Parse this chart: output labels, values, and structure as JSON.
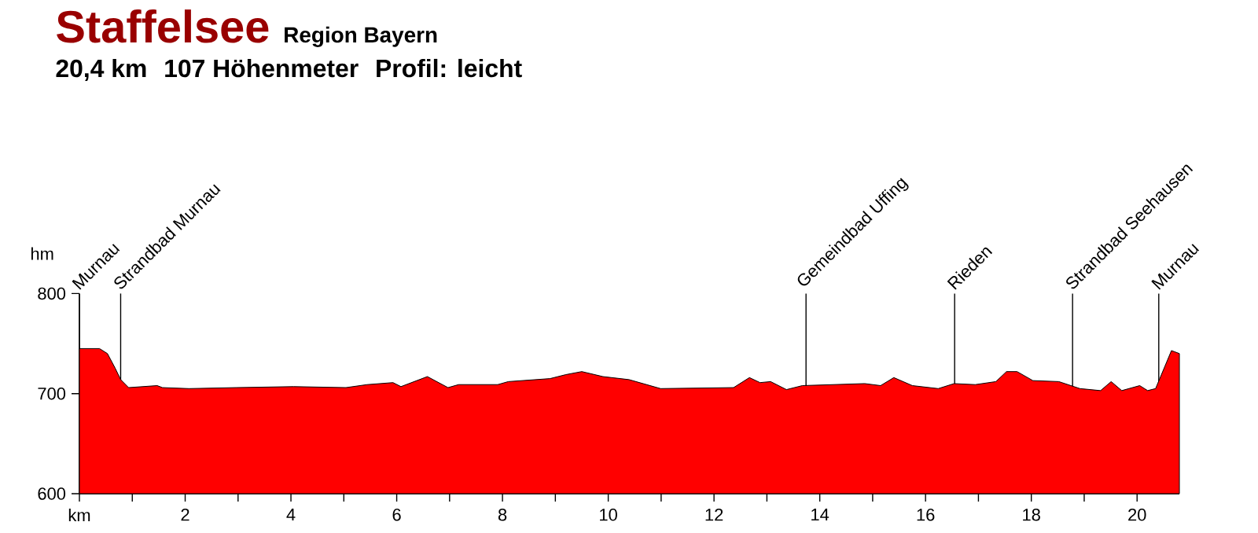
{
  "chart_data": {
    "type": "area",
    "title": "Staffelsee",
    "subtitle": "Region Bayern",
    "ylabel": "hm",
    "annotations": [
      "20,4 km",
      "107 Höhenmeter",
      "Profil: leicht"
    ],
    "x": [
      0,
      0.38,
      0.53,
      0.68,
      0.78,
      0.93,
      1.47,
      1.57,
      2.07,
      2.96,
      4.05,
      5.04,
      5.44,
      5.93,
      6.08,
      6.58,
      6.97,
      7.17,
      7.91,
      8.11,
      8.9,
      9.2,
      9.5,
      9.9,
      10.39,
      10.99,
      12.37,
      12.67,
      12.87,
      13.07,
      13.37,
      13.67,
      14.85,
      15.15,
      15.4,
      15.75,
      16.24,
      16.54,
      16.94,
      17.33,
      17.53,
      17.73,
      18.03,
      18.52,
      18.92,
      19.31,
      19.51,
      19.71,
      20.05,
      20.2,
      20.35,
      20.65,
      20.8
    ],
    "series": [
      {
        "color": "#ff0000",
        "values": [
          745,
          745,
          740,
          725,
          714,
          706,
          708,
          706,
          705,
          706,
          707,
          706,
          709,
          711,
          707,
          717,
          706,
          709,
          709,
          712,
          715,
          719,
          722,
          717,
          714,
          705,
          706,
          716,
          711,
          712,
          704,
          708,
          710,
          708,
          716,
          708,
          705,
          710,
          709,
          712,
          722,
          722,
          713,
          712,
          705,
          703,
          712,
          703,
          708,
          703,
          705,
          743,
          740
        ]
      }
    ],
    "xlim": [
      0,
      20.8
    ],
    "ylim": [
      600,
      800
    ],
    "xticks": [
      {
        "value": 0,
        "label": "km"
      },
      {
        "value": 1,
        "label": null
      },
      2,
      {
        "value": 3,
        "label": null
      },
      4,
      {
        "value": 5,
        "label": null
      },
      6,
      {
        "value": 7,
        "label": null
      },
      8,
      {
        "value": 9,
        "label": null
      },
      10,
      {
        "value": 11,
        "label": null
      },
      12,
      {
        "value": 13,
        "label": null
      },
      14,
      {
        "value": 15,
        "label": null
      },
      16,
      {
        "value": 17,
        "label": null
      },
      18,
      {
        "value": 19,
        "label": null
      },
      20
    ],
    "yticks": [
      600,
      700,
      800
    ],
    "ref_lines": [
      {
        "axis": "x",
        "value": 0,
        "label": "Murnau"
      },
      {
        "axis": "x",
        "value": 0.78,
        "label": "Strandbad Murnau"
      },
      {
        "axis": "x",
        "value": 13.74,
        "label": "Gemeindbad Uffing"
      },
      {
        "axis": "x",
        "value": 16.55,
        "label": "Rieden"
      },
      {
        "axis": "x",
        "value": 18.78,
        "label": "Strandbad Seehausen"
      },
      {
        "axis": "x",
        "value": 20.41,
        "label": "Murnau"
      }
    ]
  }
}
